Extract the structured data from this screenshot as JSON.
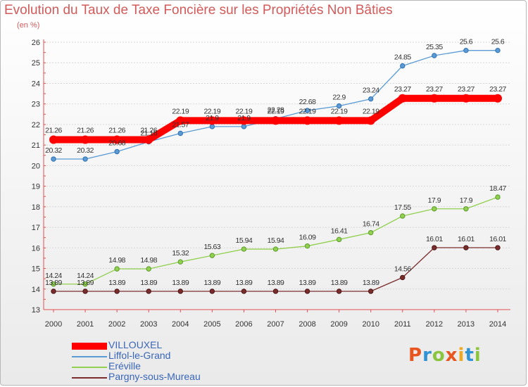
{
  "header": {
    "title": "Evolution du Taux de Taxe Foncière sur les Propriétés Non Bâties",
    "subtitle": "(en %)"
  },
  "logo": {
    "text": "Proxiti",
    "colors": [
      "#e8551f",
      "#2f93d4",
      "#8bc53f",
      "#e8551f",
      "#f0a81e",
      "#2f93d4",
      "#8bc53f"
    ]
  },
  "chart_data": {
    "type": "line",
    "x": [
      "2000",
      "2001",
      "2002",
      "2003",
      "2004",
      "2005",
      "2006",
      "2007",
      "2008",
      "2009",
      "2010",
      "2011",
      "2012",
      "2013",
      "2014"
    ],
    "ylim": [
      13,
      26
    ],
    "yticks": [
      "13",
      "14",
      "15",
      "16",
      "17",
      "18",
      "19",
      "20",
      "21",
      "22",
      "23",
      "24",
      "25",
      "26"
    ],
    "grid": "horizontal",
    "legend": "bottom-left",
    "series": [
      {
        "name": "VILLOUXEL",
        "color": "#ff0000",
        "width": 10,
        "values": [
          21.26,
          21.26,
          21.26,
          21.26,
          22.19,
          22.19,
          22.19,
          22.19,
          22.19,
          22.19,
          22.19,
          23.27,
          23.27,
          23.27,
          23.27
        ],
        "labels": [
          "21.26",
          "21.26",
          "21.26",
          "21.26",
          "22.19",
          "22.19",
          "22.19",
          "22.19",
          "22.19",
          "22.19",
          "22.19",
          "23.27",
          "23.27",
          "23.27",
          "23.27"
        ]
      },
      {
        "name": "Liffol-le-Grand",
        "color": "#5b9bd5",
        "width": 1.3,
        "values": [
          20.32,
          20.32,
          20.68,
          21.16,
          21.57,
          21.9,
          21.9,
          22.28,
          22.68,
          22.9,
          23.24,
          24.85,
          25.35,
          25.6,
          25.6
        ],
        "labels": [
          "20.32",
          "20.32",
          "20.68",
          "21.16",
          "21.57",
          "21.9",
          "21.9",
          "22.28",
          "22.68",
          "22.9",
          "23.24",
          "24.85",
          "25.35",
          "25.6",
          "25.6"
        ]
      },
      {
        "name": "Eréville",
        "color": "#92d050",
        "width": 1.3,
        "values": [
          14.24,
          14.24,
          14.98,
          14.98,
          15.32,
          15.63,
          15.94,
          15.94,
          16.09,
          16.41,
          16.74,
          17.55,
          17.9,
          17.9,
          18.47
        ],
        "labels": [
          "14.24",
          "14.24",
          "14.98",
          "14.98",
          "15.32",
          "15.63",
          "15.94",
          "15.94",
          "16.09",
          "16.41",
          "16.74",
          "17.55",
          "17.9",
          "17.9",
          "18.47"
        ]
      },
      {
        "name": "Pargny-sous-Mureau",
        "color": "#7b2c2c",
        "width": 1.3,
        "values": [
          13.89,
          13.89,
          13.89,
          13.89,
          13.89,
          13.89,
          13.89,
          13.89,
          13.89,
          13.89,
          13.89,
          14.56,
          16.01,
          16.01,
          16.01
        ],
        "labels": [
          "13.89",
          "13.89",
          "13.89",
          "13.89",
          "13.89",
          "13.89",
          "13.89",
          "13.89",
          "13.89",
          "13.89",
          "13.89",
          "14.56",
          "16.01",
          "16.01",
          "16.01"
        ]
      }
    ]
  }
}
